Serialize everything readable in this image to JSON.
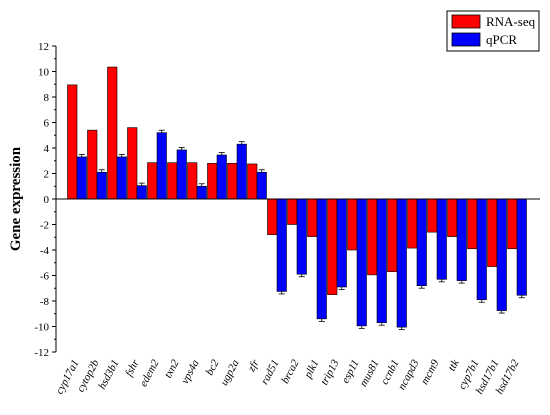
{
  "chart_data": {
    "type": "bar",
    "title": "",
    "xlabel": "",
    "ylabel": "Gene expression",
    "ylim": [
      -12,
      12
    ],
    "yticks": [
      -12,
      -10,
      -8,
      -6,
      -4,
      -2,
      0,
      2,
      4,
      6,
      8,
      10,
      12
    ],
    "grid": false,
    "legend_position": "top-right",
    "categories": [
      "cyp17a1",
      "cytop2b",
      "hsd3b1",
      "fshr",
      "edem2",
      "txn2",
      "vps4a",
      "bc2",
      "ugp2a",
      "zfr",
      "rad51",
      "brca2",
      "plk1",
      "trip13",
      "esp11",
      "mus81",
      "ccnb1",
      "ncapd3",
      "mcm9",
      "ttk",
      "cyp7b1",
      "hsd17b1",
      "hsd17b2"
    ],
    "series": [
      {
        "name": "RNA-seq",
        "color": "#ff0000",
        "values": [
          8.95,
          5.4,
          10.35,
          5.6,
          2.85,
          2.85,
          2.85,
          2.8,
          2.8,
          2.75,
          -2.8,
          -2.0,
          -2.95,
          -7.5,
          -4.0,
          -5.95,
          -5.7,
          -3.85,
          -2.6,
          -2.95,
          -3.9,
          -5.3,
          -3.9
        ]
      },
      {
        "name": "qPCR",
        "color": "#0000ff",
        "values": [
          3.3,
          2.1,
          3.3,
          1.05,
          5.2,
          3.85,
          1.0,
          3.45,
          4.3,
          2.1,
          -7.25,
          -5.9,
          -9.4,
          -6.9,
          -9.95,
          -9.7,
          -10.05,
          -6.8,
          -6.3,
          -6.4,
          -7.9,
          -8.75,
          -7.55
        ]
      }
    ]
  },
  "legend": {
    "items": [
      "RNA-seq",
      "qPCR"
    ]
  }
}
